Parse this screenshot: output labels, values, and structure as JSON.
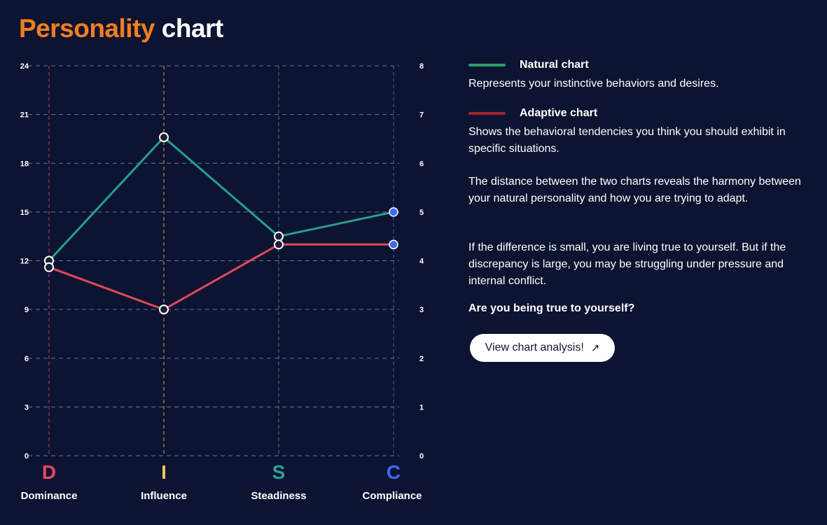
{
  "header": {
    "title_accent": "Personality",
    "title_rest": "chart"
  },
  "colors": {
    "background": "#0d1431",
    "accent": "#f47e20",
    "natural_line": "#26a08e",
    "adaptive_line": "#e0485c",
    "natural_swatch": "#28a06a",
    "adaptive_swatch": "#a3232a",
    "D": "#e8485f",
    "I": "#f6c15c",
    "S": "#27a693",
    "C": "#4169f0"
  },
  "legend": {
    "natural": {
      "name": "Natural chart",
      "description": "Represents your instinctive behaviors and desires."
    },
    "adaptive": {
      "name": "Adaptive chart",
      "description": "Shows the behavioral tendencies you think you should exhibit in specific situations."
    }
  },
  "text": {
    "para1": "The distance between the two charts reveals the harmony between your natural personality and how you are trying to adapt.",
    "para2": "If the difference is small, you are living true to yourself. But if the discrepancy is large, you may be struggling under pressure and internal conflict.",
    "question": "Are you being true to yourself?",
    "cta_label": "View chart analysis!",
    "cta_icon": "arrow-up-right-icon"
  },
  "chart_data": {
    "type": "line",
    "categories": [
      {
        "letter": "D",
        "label": "Dominance"
      },
      {
        "letter": "I",
        "label": "Influence"
      },
      {
        "letter": "S",
        "label": "Steadiness"
      },
      {
        "letter": "C",
        "label": "Compliance"
      }
    ],
    "y_left": {
      "range": [
        0,
        24
      ],
      "ticks": [
        0,
        3,
        6,
        9,
        12,
        15,
        18,
        21,
        24
      ]
    },
    "y_right": {
      "range": [
        0,
        8
      ],
      "ticks": [
        0,
        1,
        2,
        3,
        4,
        5,
        6,
        7,
        8
      ]
    },
    "grid": true,
    "series": [
      {
        "name": "Natural chart",
        "values": [
          12,
          19.6,
          13.5,
          15
        ]
      },
      {
        "name": "Adaptive chart",
        "values": [
          11.6,
          9,
          13,
          13
        ]
      }
    ]
  }
}
